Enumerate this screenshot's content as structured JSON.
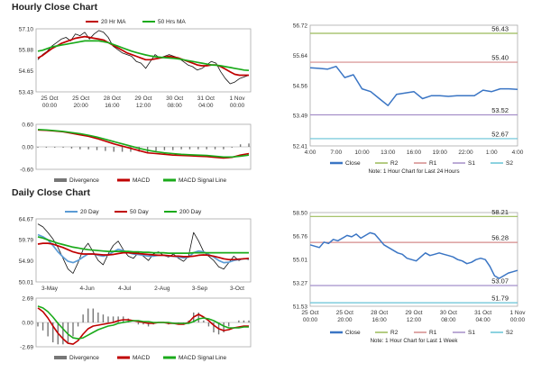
{
  "sections": {
    "hourly_title": "Hourly Close Chart",
    "daily_title": "Daily Close Chart"
  },
  "colors": {
    "ma_short": "#c00000",
    "ma_long": "#1aaa1a",
    "ma_200": "#1aaa1a",
    "ma_20": "#5b9bd5",
    "close": "#3a75c4",
    "r2": "#9bbb59",
    "r1": "#d48a8a",
    "s1": "#a58fc9",
    "s2": "#66c2d6",
    "divergence": "#777777",
    "macd": "#c00000",
    "signal": "#1aaa1a",
    "border": "#aaaaaa"
  },
  "chart_data": [
    {
      "id": "hourly_price",
      "type": "line",
      "title": "Hourly Close Chart",
      "x_ticks": [
        "25 Oct\n00:00",
        "25 Oct\n20:00",
        "28 Oct\n16:00",
        "29 Oct\n12:00",
        "30 Oct\n08:00",
        "31 Oct\n04:00",
        "1 Nov\n00:00"
      ],
      "ylim": [
        53.43,
        57.1
      ],
      "y_ticks": [
        "57.10",
        "55.88",
        "54.65",
        "53.43"
      ],
      "y_tick_values": [
        57.1,
        55.88,
        54.65,
        53.43
      ],
      "legend": [
        "20 Hr MA",
        "50 Hrs MA"
      ],
      "price": [
        55.3,
        55.6,
        55.8,
        56.1,
        56.3,
        56.5,
        56.6,
        56.4,
        56.8,
        56.7,
        56.9,
        56.5,
        56.8,
        57.0,
        56.9,
        56.6,
        56.1,
        55.9,
        55.7,
        55.6,
        55.5,
        55.2,
        55.1,
        54.8,
        55.2,
        55.6,
        55.4,
        55.5,
        55.6,
        55.5,
        55.4,
        55.2,
        55.0,
        54.9,
        54.7,
        54.8,
        55.0,
        55.2,
        55.1,
        54.6,
        54.2,
        53.9,
        54.0,
        54.2,
        54.3,
        54.4
      ],
      "series": [
        {
          "name": "20 Hr MA",
          "values": [
            55.4,
            55.55,
            55.75,
            55.95,
            56.1,
            56.25,
            56.35,
            56.45,
            56.55,
            56.6,
            56.65,
            56.6,
            56.55,
            56.5,
            56.45,
            56.3,
            56.15,
            56.0,
            55.85,
            55.7,
            55.6,
            55.5,
            55.4,
            55.3,
            55.3,
            55.35,
            55.4,
            55.45,
            55.5,
            55.45,
            55.4,
            55.3,
            55.2,
            55.1,
            55.0,
            54.95,
            54.95,
            55.0,
            55.0,
            54.9,
            54.75,
            54.6,
            54.45,
            54.4,
            54.4,
            54.4
          ]
        },
        {
          "name": "50 Hrs MA",
          "values": [
            55.8,
            55.85,
            55.95,
            56.05,
            56.1,
            56.15,
            56.2,
            56.25,
            56.3,
            56.35,
            56.4,
            56.4,
            56.4,
            56.4,
            56.35,
            56.3,
            56.2,
            56.1,
            56.0,
            55.9,
            55.8,
            55.72,
            55.65,
            55.58,
            55.52,
            55.48,
            55.45,
            55.42,
            55.4,
            55.38,
            55.35,
            55.3,
            55.25,
            55.2,
            55.15,
            55.1,
            55.05,
            55.0,
            54.98,
            54.95,
            54.9,
            54.85,
            54.8,
            54.75,
            54.7,
            54.68
          ]
        }
      ]
    },
    {
      "id": "hourly_macd",
      "type": "line",
      "ylim": [
        -0.6,
        0.6
      ],
      "y_ticks": [
        "0.60",
        "0.00",
        "-0.60"
      ],
      "y_tick_values": [
        0.6,
        0.0,
        -0.6
      ],
      "legend": [
        "Divergence",
        "MACD",
        "MACD Signal Line"
      ],
      "series": [
        {
          "name": "MACD",
          "values": [
            0.45,
            0.44,
            0.42,
            0.4,
            0.36,
            0.32,
            0.28,
            0.22,
            0.15,
            0.08,
            0.02,
            -0.04,
            -0.1,
            -0.16,
            -0.18,
            -0.2,
            -0.22,
            -0.23,
            -0.24,
            -0.25,
            -0.26,
            -0.28,
            -0.3,
            -0.28,
            -0.22,
            -0.18
          ]
        },
        {
          "name": "MACD Signal Line",
          "values": [
            0.46,
            0.45,
            0.43,
            0.41,
            0.38,
            0.35,
            0.31,
            0.26,
            0.2,
            0.14,
            0.08,
            0.02,
            -0.04,
            -0.09,
            -0.13,
            -0.16,
            -0.18,
            -0.2,
            -0.21,
            -0.22,
            -0.23,
            -0.25,
            -0.27,
            -0.27,
            -0.25,
            -0.22
          ]
        }
      ]
    },
    {
      "id": "hourly_pivot",
      "type": "line",
      "title": "Note: 1 Hour Chart for Last 24 Hours",
      "x_ticks": [
        "4:00",
        "7:00",
        "10:00",
        "13:00",
        "16:00",
        "19:00",
        "22:00",
        "1:00",
        "4:00"
      ],
      "ylim": [
        52.41,
        56.72
      ],
      "y_ticks": [
        "56.72",
        "55.64",
        "54.56",
        "53.49",
        "52.41"
      ],
      "y_tick_values": [
        56.72,
        55.64,
        54.56,
        53.49,
        52.41
      ],
      "legend": [
        "Close",
        "R2",
        "R1",
        "S1",
        "S2"
      ],
      "levels": {
        "R2": 56.43,
        "R1": 55.4,
        "S1": 53.52,
        "S2": 52.67
      },
      "level_labels": {
        "R2": "56.43",
        "R1": "55.40",
        "S1": "53.52",
        "S2": "52.67"
      },
      "series": [
        {
          "name": "Close",
          "values": [
            55.2,
            55.18,
            55.15,
            55.25,
            54.85,
            54.95,
            54.45,
            54.35,
            54.1,
            53.85,
            54.25,
            54.3,
            54.35,
            54.1,
            54.2,
            54.2,
            54.18,
            54.2,
            54.2,
            54.2,
            54.4,
            54.35,
            54.45,
            54.45,
            54.43
          ]
        }
      ]
    },
    {
      "id": "daily_price",
      "type": "line",
      "title": "Daily Close Chart",
      "x_ticks": [
        "3-May",
        "4-Jun",
        "4-Jul",
        "2-Aug",
        "3-Sep",
        "3-Oct"
      ],
      "ylim": [
        50.01,
        64.67
      ],
      "y_ticks": [
        "64.67",
        "59.79",
        "54.90",
        "50.01"
      ],
      "y_tick_values": [
        64.67,
        59.79,
        54.9,
        50.01
      ],
      "legend": [
        "20 Day",
        "50 Day",
        "200 Day"
      ],
      "price": [
        63.5,
        62.8,
        61.5,
        60.0,
        58.0,
        55.5,
        53.0,
        52.0,
        54.5,
        57.5,
        59.0,
        57.0,
        55.0,
        54.0,
        56.5,
        58.5,
        59.5,
        57.5,
        56.0,
        55.5,
        56.8,
        56.0,
        55.0,
        56.5,
        57.0,
        56.2,
        55.8,
        56.5,
        55.5,
        54.8,
        56.0,
        61.5,
        59.5,
        57.0,
        56.0,
        55.0,
        53.5,
        53.0,
        54.5,
        56.0,
        55.0,
        55.5,
        55.2
      ],
      "series": [
        {
          "name": "20 Day",
          "values": [
            61.0,
            60.5,
            59.8,
            58.5,
            57.0,
            55.8,
            54.8,
            54.5,
            55.0,
            55.8,
            56.5,
            56.5,
            56.2,
            56.0,
            56.3,
            57.0,
            57.6,
            57.3,
            56.8,
            56.5,
            56.4,
            56.2,
            56.0,
            56.0,
            56.2,
            56.2,
            56.0,
            56.0,
            55.8,
            55.6,
            55.8,
            56.8,
            57.2,
            57.0,
            56.4,
            55.8,
            55.0,
            54.5,
            54.6,
            55.0,
            55.2,
            55.4,
            55.4
          ]
        },
        {
          "name": "50 Day",
          "values": [
            58.8,
            59.0,
            59.0,
            58.8,
            58.4,
            58.0,
            57.5,
            57.0,
            56.7,
            56.5,
            56.5,
            56.5,
            56.4,
            56.3,
            56.3,
            56.4,
            56.6,
            56.8,
            56.8,
            56.7,
            56.6,
            56.5,
            56.4,
            56.3,
            56.2,
            56.2,
            56.1,
            56.0,
            56.0,
            55.9,
            55.9,
            56.0,
            56.2,
            56.3,
            56.2,
            56.0,
            55.7,
            55.4,
            55.2,
            55.2,
            55.3,
            55.4,
            55.5
          ]
        },
        {
          "name": "200 Day",
          "values": [
            60.5,
            60.2,
            59.8,
            59.4,
            59.0,
            58.7,
            58.4,
            58.1,
            57.9,
            57.7,
            57.5,
            57.4,
            57.3,
            57.2,
            57.1,
            57.1,
            57.1,
            57.1,
            57.1,
            57.0,
            57.0,
            56.9,
            56.9,
            56.8,
            56.8,
            56.8,
            56.7,
            56.7,
            56.7,
            56.7,
            56.7,
            56.8,
            56.8,
            56.8,
            56.8,
            56.8,
            56.8,
            56.8,
            56.8,
            56.8,
            56.8,
            56.8,
            56.8
          ]
        }
      ]
    },
    {
      "id": "daily_macd",
      "type": "line",
      "ylim": [
        -2.69,
        2.69
      ],
      "y_ticks": [
        "2.69",
        "0.00",
        "-2.69"
      ],
      "y_tick_values": [
        2.69,
        0.0,
        -2.69
      ],
      "legend": [
        "Divergence",
        "MACD",
        "MACD Signal Line"
      ],
      "series": [
        {
          "name": "MACD",
          "values": [
            1.6,
            1.2,
            0.5,
            -0.4,
            -1.2,
            -1.8,
            -2.3,
            -2.4,
            -2.0,
            -1.3,
            -0.7,
            -0.4,
            -0.3,
            -0.2,
            -0.1,
            0.0,
            0.2,
            0.3,
            0.3,
            0.2,
            0.1,
            0.0,
            -0.1,
            -0.1,
            0.0,
            0.0,
            -0.1,
            -0.1,
            -0.2,
            -0.2,
            0.0,
            0.6,
            0.9,
            0.6,
            0.2,
            -0.3,
            -0.7,
            -0.9,
            -0.8,
            -0.6,
            -0.5,
            -0.4,
            -0.4
          ]
        },
        {
          "name": "MACD Signal Line",
          "values": [
            1.8,
            1.6,
            1.2,
            0.6,
            -0.1,
            -0.7,
            -1.3,
            -1.7,
            -1.8,
            -1.7,
            -1.4,
            -1.1,
            -0.8,
            -0.6,
            -0.4,
            -0.3,
            -0.1,
            0.0,
            0.1,
            0.2,
            0.2,
            0.1,
            0.1,
            0.0,
            0.0,
            0.0,
            0.0,
            -0.1,
            -0.1,
            -0.1,
            -0.1,
            0.1,
            0.4,
            0.5,
            0.4,
            0.2,
            -0.1,
            -0.4,
            -0.6,
            -0.6,
            -0.6,
            -0.5,
            -0.5
          ]
        }
      ]
    },
    {
      "id": "daily_pivot",
      "type": "line",
      "title": "Note: 1 Hour Chart for Last 1 Week",
      "x_ticks": [
        "25 Oct\n00:00",
        "25 Oct\n20:00",
        "28 Oct\n16:00",
        "29 Oct\n12:00",
        "30 Oct\n08:00",
        "31 Oct\n04:00",
        "1 Nov\n00:00"
      ],
      "ylim": [
        51.53,
        58.5
      ],
      "y_ticks": [
        "58.50",
        "56.76",
        "55.01",
        "53.27",
        "51.53"
      ],
      "y_tick_values": [
        58.5,
        56.76,
        55.01,
        53.27,
        51.53
      ],
      "legend": [
        "Close",
        "R2",
        "R1",
        "S1",
        "S2"
      ],
      "levels": {
        "R2": 58.21,
        "R1": 56.28,
        "S1": 53.07,
        "S2": 51.79
      },
      "level_labels": {
        "R2": "58.21",
        "R1": "56.28",
        "S1": "53.07",
        "S2": "51.79"
      },
      "series": [
        {
          "name": "Close",
          "values": [
            56.1,
            56.0,
            55.9,
            56.3,
            56.2,
            56.5,
            56.4,
            56.6,
            56.8,
            56.7,
            56.9,
            56.6,
            56.8,
            57.0,
            56.9,
            56.5,
            56.1,
            55.9,
            55.7,
            55.5,
            55.4,
            55.1,
            55.0,
            54.9,
            55.2,
            55.5,
            55.3,
            55.4,
            55.5,
            55.4,
            55.3,
            55.2,
            55.0,
            54.9,
            54.7,
            54.8,
            55.0,
            55.1,
            55.0,
            54.5,
            53.8,
            53.6,
            53.8,
            54.0,
            54.1,
            54.2
          ]
        }
      ]
    }
  ]
}
